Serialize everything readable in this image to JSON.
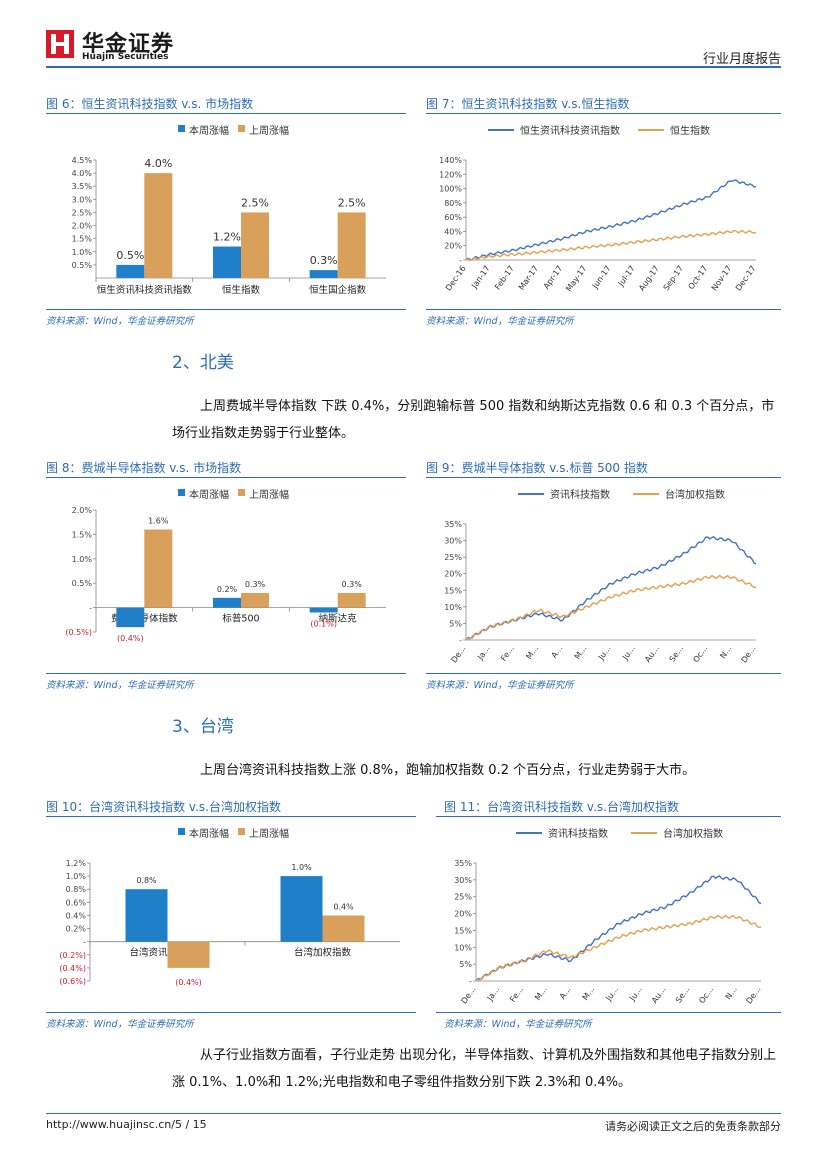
{
  "header": {
    "brand_cn": "华金证券",
    "brand_en": "Huajin Securities",
    "report_type": "行业月度报告",
    "colors": {
      "brand_red": "#d7192a",
      "brand_blue": "#2c6db5"
    }
  },
  "figures": [
    {
      "title": "图 6：恒生资讯科技指数 v.s. 市场指数",
      "source": "资料来源：Wind，华金证券研究所"
    },
    {
      "title": "图 7：恒生资讯科技指数 v.s.恒生指数",
      "source": "资料来源：Wind，华金证券研究所"
    },
    {
      "title": "图 8：费城半导体指数 v.s. 市场指数",
      "source": "资料来源：Wind，华金证券研究所"
    },
    {
      "title": "图 9：费城半导体指数 v.s.标普 500 指数",
      "source": "资料来源：Wind，华金证券研究所"
    },
    {
      "title": "图 10：台湾资讯科技指数 v.s.台湾加权指数",
      "source": "资料来源：Wind，华金证券研究所"
    },
    {
      "title": "图 11：台湾资讯科技指数 v.s.台湾加权指数",
      "source": "资料来源：Wind，华金证券研究所"
    }
  ],
  "sections": [
    {
      "heading": "2、北美",
      "text": "上周费城半导体指数 下跌 0.4%，分别跑输标普 500 指数和纳斯达克指数 0.6 和 0.3 个百分点，市场行业指数走势弱于行业整体。"
    },
    {
      "heading": "3、台湾",
      "text": "上周台湾资讯科技指数上涨 0.8%，跑输加权指数 0.2 个百分点，行业走势弱于大市。"
    }
  ],
  "closing_text": "从子行业指数方面看，子行业走势 出现分化，半导体指数、计算机及外围指数和其他电子指数分别上涨 0.1%、1.0%和 1.2%;光电指数和电子零组件指数分别下跌 2.3%和 0.4%。",
  "footer": {
    "url": "http://www.huajinsc.cn/",
    "page": "5 / 15",
    "disclaimer": "请务必阅读正文之后的免责条款部分"
  },
  "chart_data": [
    {
      "type": "bar",
      "id": "fig6",
      "legend": [
        "本周涨幅",
        "上周涨幅"
      ],
      "colors": [
        "#1f7fc8",
        "#d9a05b"
      ],
      "categories": [
        "恒生资讯科技资讯指数",
        "恒生指数",
        "恒生国企指数"
      ],
      "series": [
        {
          "name": "本周涨幅",
          "values": [
            0.5,
            1.2,
            0.3
          ],
          "labels": [
            "0.5%",
            "1.2%",
            "0.3%"
          ]
        },
        {
          "name": "上周涨幅",
          "values": [
            4.0,
            2.5,
            2.5
          ],
          "labels": [
            "4.0%",
            "2.5%",
            "2.5%"
          ]
        }
      ],
      "ylim": [
        0,
        4.5
      ],
      "yticks": [
        0.5,
        1.0,
        1.5,
        2.0,
        2.5,
        3.0,
        3.5,
        4.0,
        4.5
      ],
      "ytick_labels": [
        "0.5%",
        "1.0%",
        "1.5%",
        "2.0%",
        "2.5%",
        "3.0%",
        "3.5%",
        "4.0%",
        "4.5%"
      ],
      "negative_labels": []
    },
    {
      "type": "line",
      "id": "fig7",
      "legend": [
        "恒生资讯科技资讯指数",
        "恒生指数"
      ],
      "colors": [
        "#4472c4",
        "#e0a150"
      ],
      "x": [
        "Dec-16",
        "Jan-17",
        "Feb-17",
        "Mar-17",
        "Apr-17",
        "May-17",
        "Jun-17",
        "Jul-17",
        "Aug-17",
        "Sep-17",
        "Oct-17",
        "Nov-17",
        "Dec-17"
      ],
      "series": [
        {
          "name": "恒生资讯科技资讯指数",
          "values": [
            0,
            8,
            14,
            22,
            30,
            40,
            47,
            55,
            66,
            78,
            88,
            112,
            103
          ]
        },
        {
          "name": "恒生指数",
          "values": [
            0,
            5,
            8,
            11,
            14,
            18,
            21,
            25,
            29,
            33,
            36,
            40,
            39
          ]
        }
      ],
      "ylim": [
        0,
        140
      ],
      "yticks": [
        0,
        20,
        40,
        60,
        80,
        100,
        120,
        140
      ],
      "ytick_labels": [
        "-",
        "20%",
        "40%",
        "60%",
        "80%",
        "100%",
        "120%",
        "140%"
      ]
    },
    {
      "type": "bar",
      "id": "fig8",
      "legend": [
        "本周涨幅",
        "上周涨幅"
      ],
      "colors": [
        "#1f7fc8",
        "#d9a05b"
      ],
      "categories": [
        "费城半导体指数",
        "标普500",
        "纳斯达克"
      ],
      "series": [
        {
          "name": "本周涨幅",
          "values": [
            -0.4,
            0.2,
            -0.1
          ],
          "labels": [
            "(0.4%)",
            "0.2%",
            "(0.1%)"
          ]
        },
        {
          "name": "上周涨幅",
          "values": [
            1.6,
            0.3,
            0.3
          ],
          "labels": [
            "1.6%",
            "0.3%",
            "0.3%"
          ]
        }
      ],
      "ylim": [
        -0.5,
        2.0
      ],
      "yticks": [
        -0.5,
        0,
        0.5,
        1.0,
        1.5,
        2.0
      ],
      "ytick_labels": [
        "(0.5%)",
        "-",
        "0.5%",
        "1.0%",
        "1.5%",
        "2.0%"
      ]
    },
    {
      "type": "line",
      "id": "fig9",
      "legend": [
        "资讯科技指数",
        "台湾加权指数"
      ],
      "colors": [
        "#4472c4",
        "#e0a150"
      ],
      "x": [
        "Dec-16",
        "Jan-17",
        "Feb-17",
        "Mar-17",
        "Apr-17",
        "May-17",
        "Jun-17",
        "Jul-17",
        "Aug-17",
        "Sep-17",
        "Oct-17",
        "Nov-17",
        "Dec-17"
      ],
      "x_labels": [
        "De...",
        "Ja...",
        "Fe...",
        "M...",
        "A...",
        "M...",
        "Ju...",
        "Ju...",
        "Au...",
        "Se...",
        "Oc...",
        "N...",
        "De..."
      ],
      "series": [
        {
          "name": "资讯科技指数",
          "values": [
            0,
            4,
            6,
            8,
            6,
            12,
            17,
            20,
            22,
            26,
            31,
            30,
            23
          ]
        },
        {
          "name": "台湾加权指数",
          "values": [
            0,
            4,
            6,
            9,
            7,
            10,
            13,
            15,
            16,
            17,
            19,
            19,
            16
          ]
        }
      ],
      "ylim": [
        0,
        35
      ],
      "yticks": [
        0,
        5,
        10,
        15,
        20,
        25,
        30,
        35
      ],
      "ytick_labels": [
        "-",
        "5%",
        "10%",
        "15%",
        "20%",
        "25%",
        "30%",
        "35%"
      ]
    },
    {
      "type": "bar",
      "id": "fig10",
      "legend": [
        "本周涨幅",
        "上周涨幅"
      ],
      "colors": [
        "#1f7fc8",
        "#d9a05b"
      ],
      "categories": [
        "台湾资讯科技指数",
        "台湾加权指数"
      ],
      "series": [
        {
          "name": "本周涨幅",
          "values": [
            0.8,
            1.0
          ],
          "labels": [
            "0.8%",
            "1.0%"
          ]
        },
        {
          "name": "上周涨幅",
          "values": [
            -0.4,
            0.4
          ],
          "labels": [
            "(0.4%)",
            "0.4%"
          ]
        }
      ],
      "ylim": [
        -0.6,
        1.2
      ],
      "yticks": [
        -0.6,
        -0.4,
        -0.2,
        0,
        0.2,
        0.4,
        0.6,
        0.8,
        1.0,
        1.2
      ],
      "ytick_labels": [
        "(0.6%)",
        "(0.4%)",
        "(0.2%)",
        "-",
        "0.2%",
        "0.4%",
        "0.6%",
        "0.8%",
        "1.0%",
        "1.2%"
      ]
    },
    {
      "type": "line",
      "id": "fig11",
      "legend": [
        "资讯科技指数",
        "台湾加权指数"
      ],
      "colors": [
        "#4472c4",
        "#e0a150"
      ],
      "x": [
        "Dec-16",
        "Jan-17",
        "Feb-17",
        "Mar-17",
        "Apr-17",
        "May-17",
        "Jun-17",
        "Jul-17",
        "Aug-17",
        "Sep-17",
        "Oct-17",
        "Nov-17",
        "Dec-17"
      ],
      "x_labels": [
        "De...",
        "Ja...",
        "Fe...",
        "M...",
        "A...",
        "M...",
        "Ju...",
        "Ju...",
        "Au...",
        "Se...",
        "Oc...",
        "N...",
        "De..."
      ],
      "series": [
        {
          "name": "资讯科技指数",
          "values": [
            0,
            4,
            6,
            8,
            6,
            12,
            17,
            20,
            22,
            26,
            31,
            30,
            23
          ]
        },
        {
          "name": "台湾加权指数",
          "values": [
            0,
            4,
            6,
            9,
            7,
            10,
            13,
            15,
            16,
            17,
            19,
            19,
            16
          ]
        }
      ],
      "ylim": [
        0,
        35
      ],
      "yticks": [
        0,
        5,
        10,
        15,
        20,
        25,
        30,
        35
      ],
      "ytick_labels": [
        "-",
        "5%",
        "10%",
        "15%",
        "20%",
        "25%",
        "30%",
        "35%"
      ]
    }
  ]
}
